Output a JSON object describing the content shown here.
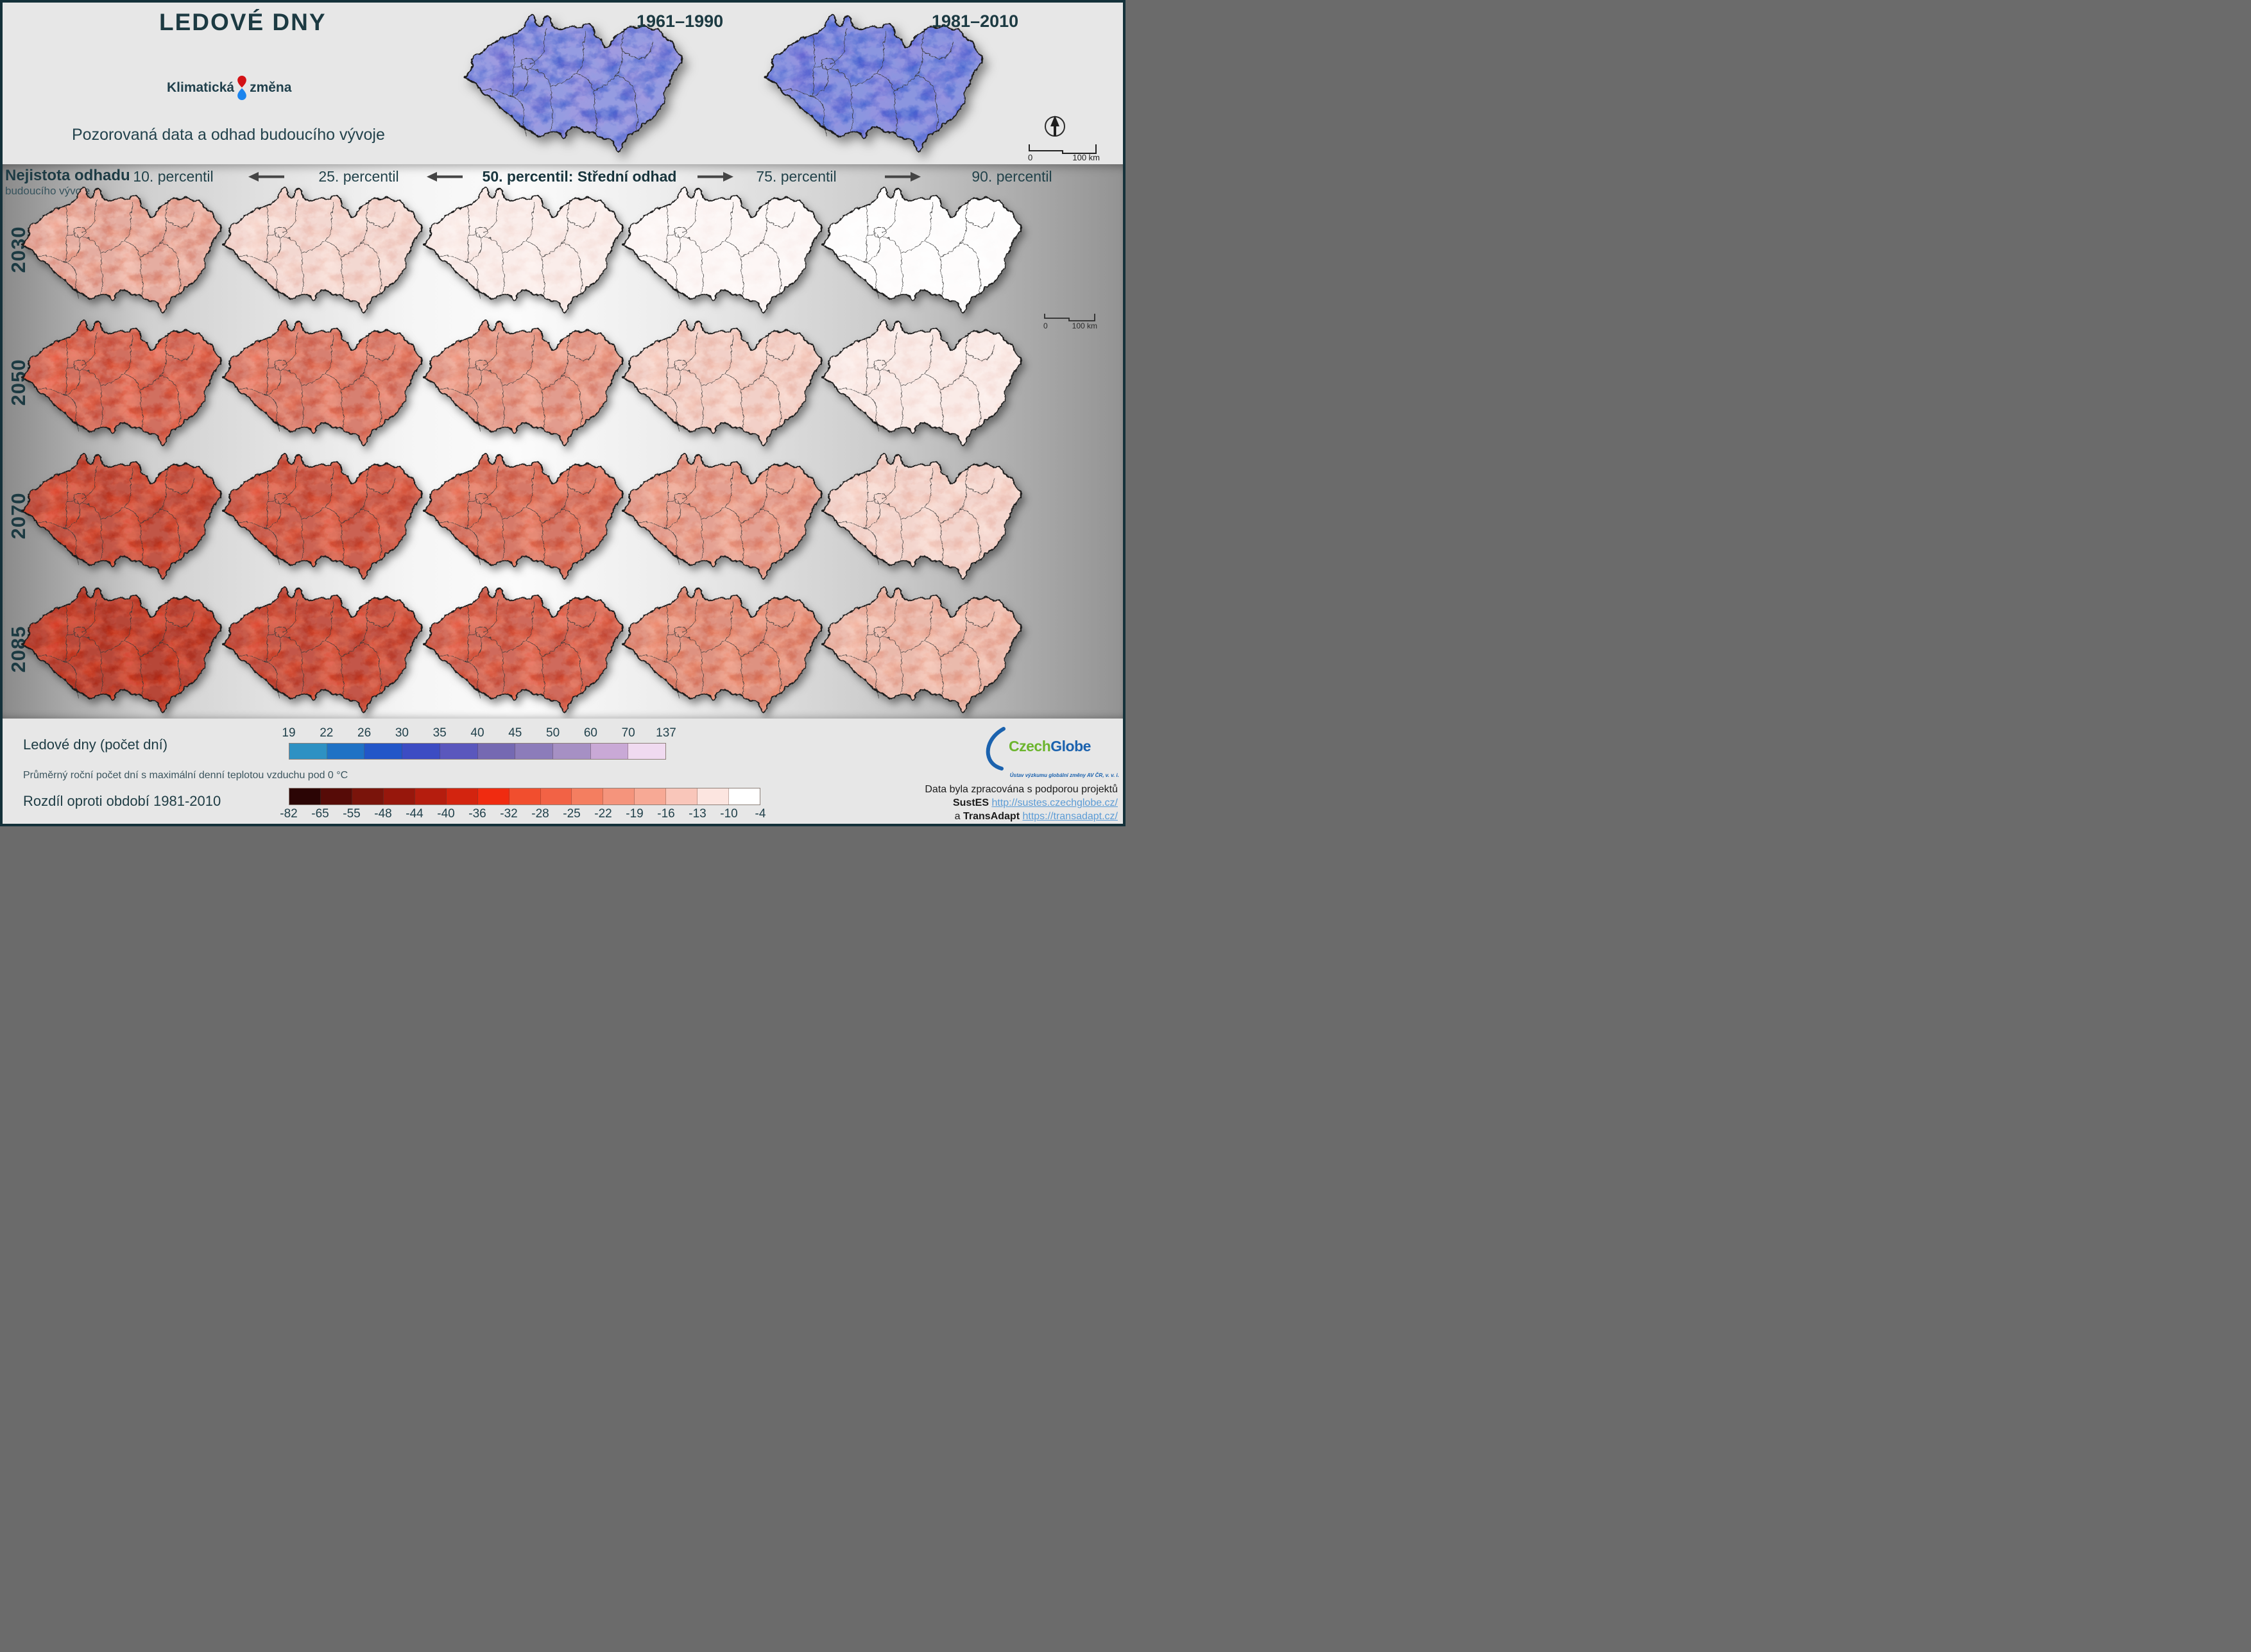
{
  "header": {
    "title": "LEDOVÉ DNY",
    "brand": {
      "word1": "Klimatická",
      "word2": "změna"
    },
    "subtitle": "Pozorovaná data a odhad budoucího vývoje",
    "historical": [
      {
        "label": "1961–1990",
        "base": "#524fc7",
        "dark": 0.62,
        "light": 0.55
      },
      {
        "label": "1981–2010",
        "base": "#4c4ccb",
        "dark": 0.66,
        "light": 0.5
      }
    ],
    "scalebar": {
      "zero": "0",
      "hundred": "100 km"
    }
  },
  "grid": {
    "uncertainty": {
      "line1": "Nejistota odhadu",
      "line2": "budoucího vývoje"
    },
    "columns": [
      {
        "label": "10. percentil"
      },
      {
        "label": "25. percentil"
      },
      {
        "label": "50. percentil: Střední odhad"
      },
      {
        "label": "75. percentil"
      },
      {
        "label": "90. percentil"
      }
    ],
    "rows": [
      "2030",
      "2050",
      "2070",
      "2085"
    ],
    "cells": [
      {
        "year": "2030",
        "percentile": "10",
        "base": "#f7a78f",
        "dark": 0.34,
        "light": 0.42
      },
      {
        "year": "2030",
        "percentile": "25",
        "base": "#fad3c6",
        "dark": 0.15,
        "light": 0.48
      },
      {
        "year": "2030",
        "percentile": "50",
        "base": "#fdece6",
        "dark": 0.08,
        "light": 0.5
      },
      {
        "year": "2030",
        "percentile": "75",
        "base": "#fef7f5",
        "dark": 0.04,
        "light": 0.5
      },
      {
        "year": "2030",
        "percentile": "90",
        "base": "#ffffff",
        "dark": 0.02,
        "light": 0.4
      },
      {
        "year": "2050",
        "percentile": "10",
        "base": "#f15738",
        "dark": 0.5,
        "light": 0.3
      },
      {
        "year": "2050",
        "percentile": "25",
        "base": "#f37254",
        "dark": 0.44,
        "light": 0.32
      },
      {
        "year": "2050",
        "percentile": "50",
        "base": "#f69478",
        "dark": 0.34,
        "light": 0.36
      },
      {
        "year": "2050",
        "percentile": "75",
        "base": "#fac8b7",
        "dark": 0.16,
        "light": 0.46
      },
      {
        "year": "2050",
        "percentile": "90",
        "base": "#fde8e1",
        "dark": 0.08,
        "light": 0.5
      },
      {
        "year": "2070",
        "percentile": "10",
        "base": "#e84425",
        "dark": 0.62,
        "light": 0.24
      },
      {
        "year": "2070",
        "percentile": "25",
        "base": "#ed5233",
        "dark": 0.54,
        "light": 0.26
      },
      {
        "year": "2070",
        "percentile": "50",
        "base": "#f16a4a",
        "dark": 0.44,
        "light": 0.3
      },
      {
        "year": "2070",
        "percentile": "75",
        "base": "#f5977b",
        "dark": 0.3,
        "light": 0.36
      },
      {
        "year": "2070",
        "percentile": "90",
        "base": "#facfc0",
        "dark": 0.15,
        "light": 0.46
      },
      {
        "year": "2085",
        "percentile": "10",
        "base": "#e13a1d",
        "dark": 0.7,
        "light": 0.2
      },
      {
        "year": "2085",
        "percentile": "25",
        "base": "#e74527",
        "dark": 0.6,
        "light": 0.24
      },
      {
        "year": "2085",
        "percentile": "50",
        "base": "#ee5638",
        "dark": 0.5,
        "light": 0.28
      },
      {
        "year": "2085",
        "percentile": "75",
        "base": "#f48765",
        "dark": 0.36,
        "light": 0.34
      },
      {
        "year": "2085",
        "percentile": "90",
        "base": "#f8b49c",
        "dark": 0.24,
        "light": 0.4
      }
    ]
  },
  "legend_days": {
    "title": "Ledové dny (počet dní)",
    "note": "Průměrný roční počet dní s maximální denní teplotou vzduchu pod 0 °C",
    "ticks": [
      "19",
      "22",
      "26",
      "30",
      "35",
      "40",
      "45",
      "50",
      "60",
      "70",
      "137"
    ],
    "colors": [
      "#2e91c3",
      "#1f72c5",
      "#2256c8",
      "#3c4cc3",
      "#5a57bd",
      "#7569b2",
      "#8c7cba",
      "#a690c4",
      "#c9a9d6",
      "#f0daf0"
    ]
  },
  "legend_diff": {
    "title": "Rozdíl oproti období 1981-2010",
    "ticks": [
      "-82",
      "-65",
      "-55",
      "-48",
      "-44",
      "-40",
      "-36",
      "-32",
      "-28",
      "-25",
      "-22",
      "-19",
      "-16",
      "-13",
      "-10",
      "-4"
    ],
    "colors": [
      "#2b0505",
      "#560b07",
      "#7a140b",
      "#97170c",
      "#b51d0e",
      "#d3240f",
      "#f02b10",
      "#f14e2e",
      "#f26245",
      "#f47e60",
      "#f5947c",
      "#f7a995",
      "#f9c6ba",
      "#fce5e0",
      "#ffffff"
    ]
  },
  "footer": {
    "czechglobe": {
      "name_green": "Czech",
      "name_blue": "Globe",
      "green": "#6cb52e",
      "blue": "#1b62ae",
      "subtitle": "Ústav výzkumu globální změny AV ČR, v. v. i."
    },
    "credits": {
      "line1": "Data byla zpracována s podporou projektů",
      "project1": "SustES",
      "url1": "http://sustes.czechglobe.cz/",
      "conjunction": "a",
      "project2": "TransAdapt",
      "url2": "https://transadapt.cz/"
    }
  }
}
